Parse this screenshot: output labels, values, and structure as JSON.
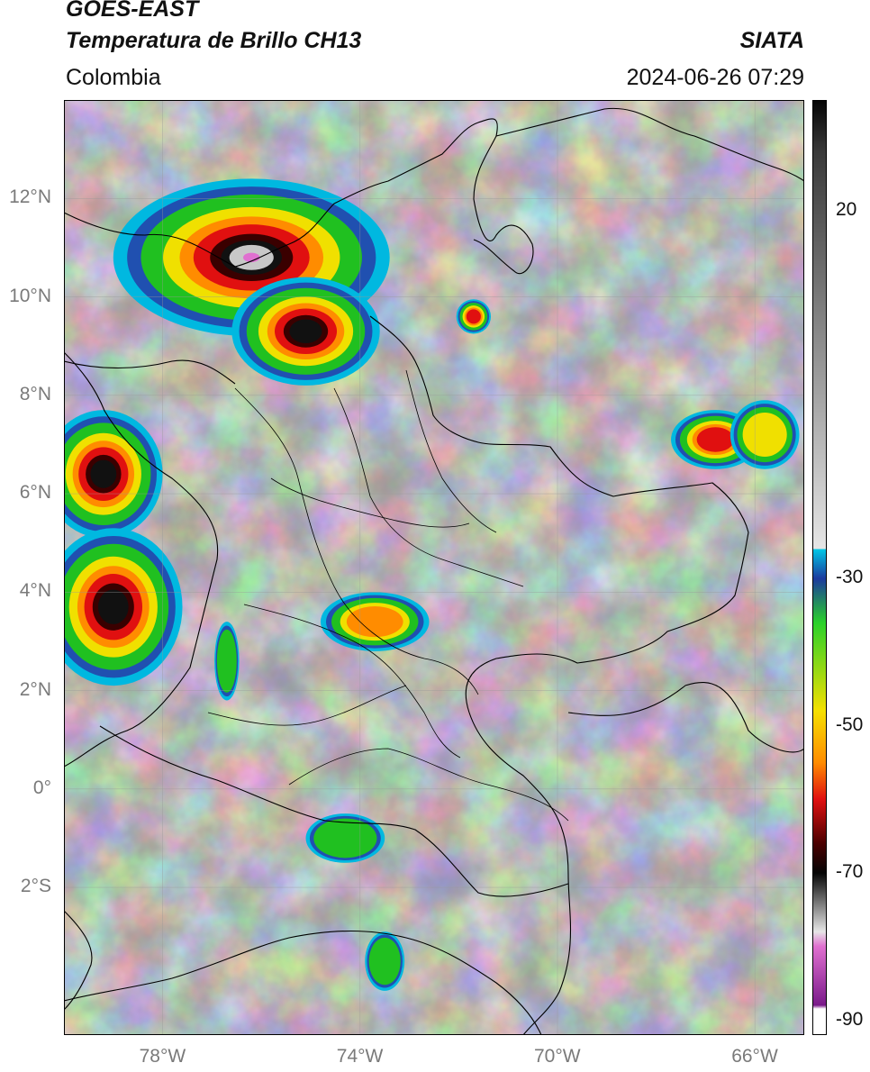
{
  "header": {
    "satellite": "GOES-EAST",
    "product": "Temperatura de Brillo CH13",
    "region": "Colombia",
    "agency": "SIATA",
    "datetime": "2024-06-26 07:29"
  },
  "map": {
    "lon_range": [
      -80,
      -65
    ],
    "lat_range": [
      -5,
      14
    ],
    "lon_ticks": [
      {
        "value": -78,
        "label": "78°W"
      },
      {
        "value": -74,
        "label": "74°W"
      },
      {
        "value": -70,
        "label": "70°W"
      },
      {
        "value": -66,
        "label": "66°W"
      }
    ],
    "lat_ticks": [
      {
        "value": 12,
        "label": "12°N"
      },
      {
        "value": 10,
        "label": "10°N"
      },
      {
        "value": 8,
        "label": "8°N"
      },
      {
        "value": 6,
        "label": "6°N"
      },
      {
        "value": 4,
        "label": "4°N"
      },
      {
        "value": 2,
        "label": "2°N"
      },
      {
        "value": 0,
        "label": "0°"
      },
      {
        "value": -2,
        "label": "2°S"
      }
    ],
    "grid": true,
    "storm_cells": [
      {
        "lon": -76.2,
        "lat": 10.8,
        "rx": 2.8,
        "ry": 1.6,
        "min_temp": -85
      },
      {
        "lon": -75.1,
        "lat": 9.3,
        "rx": 1.5,
        "ry": 1.1,
        "min_temp": -70
      },
      {
        "lon": -79.2,
        "lat": 6.4,
        "rx": 1.2,
        "ry": 1.3,
        "min_temp": -70
      },
      {
        "lon": -79.0,
        "lat": 3.7,
        "rx": 1.4,
        "ry": 1.6,
        "min_temp": -70
      },
      {
        "lon": -73.7,
        "lat": 3.4,
        "rx": 1.1,
        "ry": 0.6,
        "min_temp": -55
      },
      {
        "lon": -66.8,
        "lat": 7.1,
        "rx": 0.9,
        "ry": 0.6,
        "min_temp": -65
      },
      {
        "lon": -65.8,
        "lat": 7.2,
        "rx": 0.7,
        "ry": 0.7,
        "min_temp": -50
      },
      {
        "lon": -71.7,
        "lat": 9.6,
        "rx": 0.35,
        "ry": 0.35,
        "min_temp": -60
      },
      {
        "lon": -76.7,
        "lat": 2.6,
        "rx": 0.25,
        "ry": 0.8,
        "min_temp": -45
      },
      {
        "lon": -74.3,
        "lat": -1.0,
        "rx": 0.8,
        "ry": 0.5,
        "min_temp": -40
      },
      {
        "lon": -73.5,
        "lat": -3.5,
        "rx": 0.4,
        "ry": 0.6,
        "min_temp": -40
      }
    ]
  },
  "colorbar": {
    "min": -92,
    "max": 35,
    "ticks": [
      {
        "value": 20,
        "label": "20"
      },
      {
        "value": -30,
        "label": "-30"
      },
      {
        "value": -50,
        "label": "-50"
      },
      {
        "value": -70,
        "label": "-70"
      },
      {
        "value": -90,
        "label": "-90"
      }
    ],
    "colors": {
      "gray_warm": "#3a3a3a",
      "gray_cold": "#e6e6e6",
      "cyan": "#00c8e6",
      "blue": "#1c3a9e",
      "green": "#2ad12a",
      "yellow": "#f5e000",
      "orange": "#ff8c00",
      "red": "#e01010",
      "dark_red": "#4a0000",
      "black": "#050505",
      "pink": "#e070d0",
      "purple": "#7a1a8a"
    }
  }
}
